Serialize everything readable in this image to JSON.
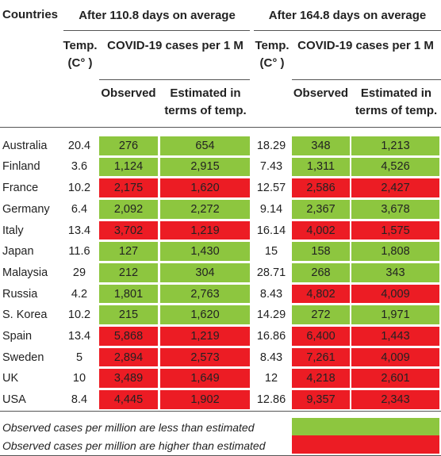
{
  "table": {
    "header": {
      "countries": "Countries",
      "groups": [
        "After 110.8 days on average",
        "After 164.8 days on average"
      ],
      "temp": "Temp. (C° )",
      "cases": "COVID-19 cases per 1 M",
      "observed": "Observed",
      "estimated": "Estimated in terms of temp."
    },
    "rows": [
      [
        "Australia",
        "20.4",
        "276",
        "654",
        "18.29",
        "348",
        "1,213"
      ],
      [
        "Finland",
        "3.6",
        "1,124",
        "2,915",
        "7.43",
        "1,311",
        "4,526"
      ],
      [
        "France",
        "10.2",
        "2,175",
        "1,620",
        "12.57",
        "2,586",
        "2,427"
      ],
      [
        "Germany",
        "6.4",
        "2,092",
        "2,272",
        "9.14",
        "2,367",
        "3,678"
      ],
      [
        "Italy",
        "13.4",
        "3,702",
        "1,219",
        "16.14",
        "4,002",
        "1,575"
      ],
      [
        "Japan",
        "11.6",
        "127",
        "1,430",
        "15",
        "158",
        "1,808"
      ],
      [
        "Malaysia",
        "29",
        "212",
        "304",
        "28.71",
        "268",
        "343"
      ],
      [
        "Russia",
        "4.2",
        "1,801",
        "2,763",
        "8.43",
        "4,802",
        "4,009"
      ],
      [
        "S. Korea",
        "10.2",
        "215",
        "1,620",
        "14.29",
        "272",
        "1,971"
      ],
      [
        "Spain",
        "13.4",
        "5,868",
        "1,219",
        "16.86",
        "6,400",
        "1,443"
      ],
      [
        "Sweden",
        "5",
        "2,894",
        "2,573",
        "8.43",
        "7,261",
        "4,009"
      ],
      [
        "UK",
        "10",
        "3,489",
        "1,649",
        "12",
        "4,218",
        "2,601"
      ],
      [
        "USA",
        "8.4",
        "4,445",
        "1,902",
        "12.86",
        "9,357",
        "2,343"
      ]
    ],
    "legend": [
      {
        "label": "Observed cases per million are less than estimated",
        "color": "#8dc63f"
      },
      {
        "label": "Observed cases per million are higher than estimated",
        "color": "#ec1c24"
      }
    ]
  }
}
